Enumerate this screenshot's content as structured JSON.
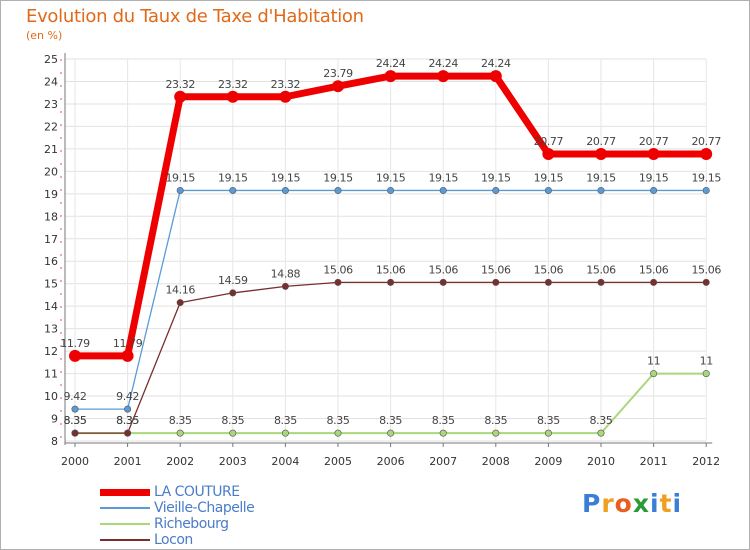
{
  "chart_data": {
    "type": "line",
    "title": "Evolution du Taux de Taxe d'Habitation",
    "unit_label": "(en %)",
    "xlabel": "",
    "ylabel": "",
    "ylim": [
      8,
      25
    ],
    "yticks": [
      "8",
      "9",
      "10",
      "11",
      "12",
      "13",
      "14",
      "15",
      "16",
      "17",
      "18",
      "19",
      "20",
      "21",
      "22",
      "23",
      "24",
      "25"
    ],
    "categories": [
      "2000",
      "2001",
      "2002",
      "2003",
      "2004",
      "2005",
      "2006",
      "2007",
      "2008",
      "2009",
      "2010",
      "2011",
      "2012"
    ],
    "series": [
      {
        "name": "LA COUTURE",
        "color": "#ee0000",
        "values": [
          11.79,
          11.79,
          23.32,
          23.32,
          23.32,
          23.79,
          24.24,
          24.24,
          24.24,
          20.77,
          20.77,
          20.77,
          20.77
        ],
        "labels": [
          "11.79",
          "11.79",
          "23.32",
          "23.32",
          "23.32",
          "23.79",
          "24.24",
          "24.24",
          "24.24",
          "20.77",
          "20.77",
          "20.77",
          "20.77"
        ]
      },
      {
        "name": "Vieille-Chapelle",
        "color": "#5b9bd5",
        "values": [
          9.42,
          9.42,
          19.15,
          19.15,
          19.15,
          19.15,
          19.15,
          19.15,
          19.15,
          19.15,
          19.15,
          19.15,
          19.15
        ],
        "labels": [
          "9.42",
          "9.42",
          "19.15",
          "19.15",
          "19.15",
          "19.15",
          "19.15",
          "19.15",
          "19.15",
          "19.15",
          "19.15",
          "19.15",
          "19.15"
        ]
      },
      {
        "name": "Richebourg",
        "color": "#a8d87a",
        "values": [
          8.35,
          8.35,
          8.35,
          8.35,
          8.35,
          8.35,
          8.35,
          8.35,
          8.35,
          8.35,
          8.35,
          11,
          11
        ],
        "labels": [
          "8.35",
          "8.35",
          "8.35",
          "8.35",
          "8.35",
          "8.35",
          "8.35",
          "8.35",
          "8.35",
          "8.35",
          "8.35",
          "11",
          "11"
        ]
      },
      {
        "name": "Locon",
        "color": "#7a2e2e",
        "values": [
          8.35,
          8.35,
          14.16,
          14.59,
          14.88,
          15.06,
          15.06,
          15.06,
          15.06,
          15.06,
          15.06,
          15.06,
          15.06
        ],
        "labels": [
          "8.35",
          "8.35",
          "14.16",
          "14.59",
          "14.88",
          "15.06",
          "15.06",
          "15.06",
          "15.06",
          "15.06",
          "15.06",
          "15.06",
          "15.06"
        ]
      }
    ],
    "legend_position": "bottom-left"
  },
  "brand": {
    "letters": [
      "P",
      "r",
      "o",
      "x",
      "i",
      "t",
      "i"
    ],
    "colors": [
      "#3a7fd5",
      "#f0a020",
      "#e86020",
      "#2a9a3a",
      "#3a7fd5",
      "#f0a020",
      "#3a7fd5"
    ]
  }
}
